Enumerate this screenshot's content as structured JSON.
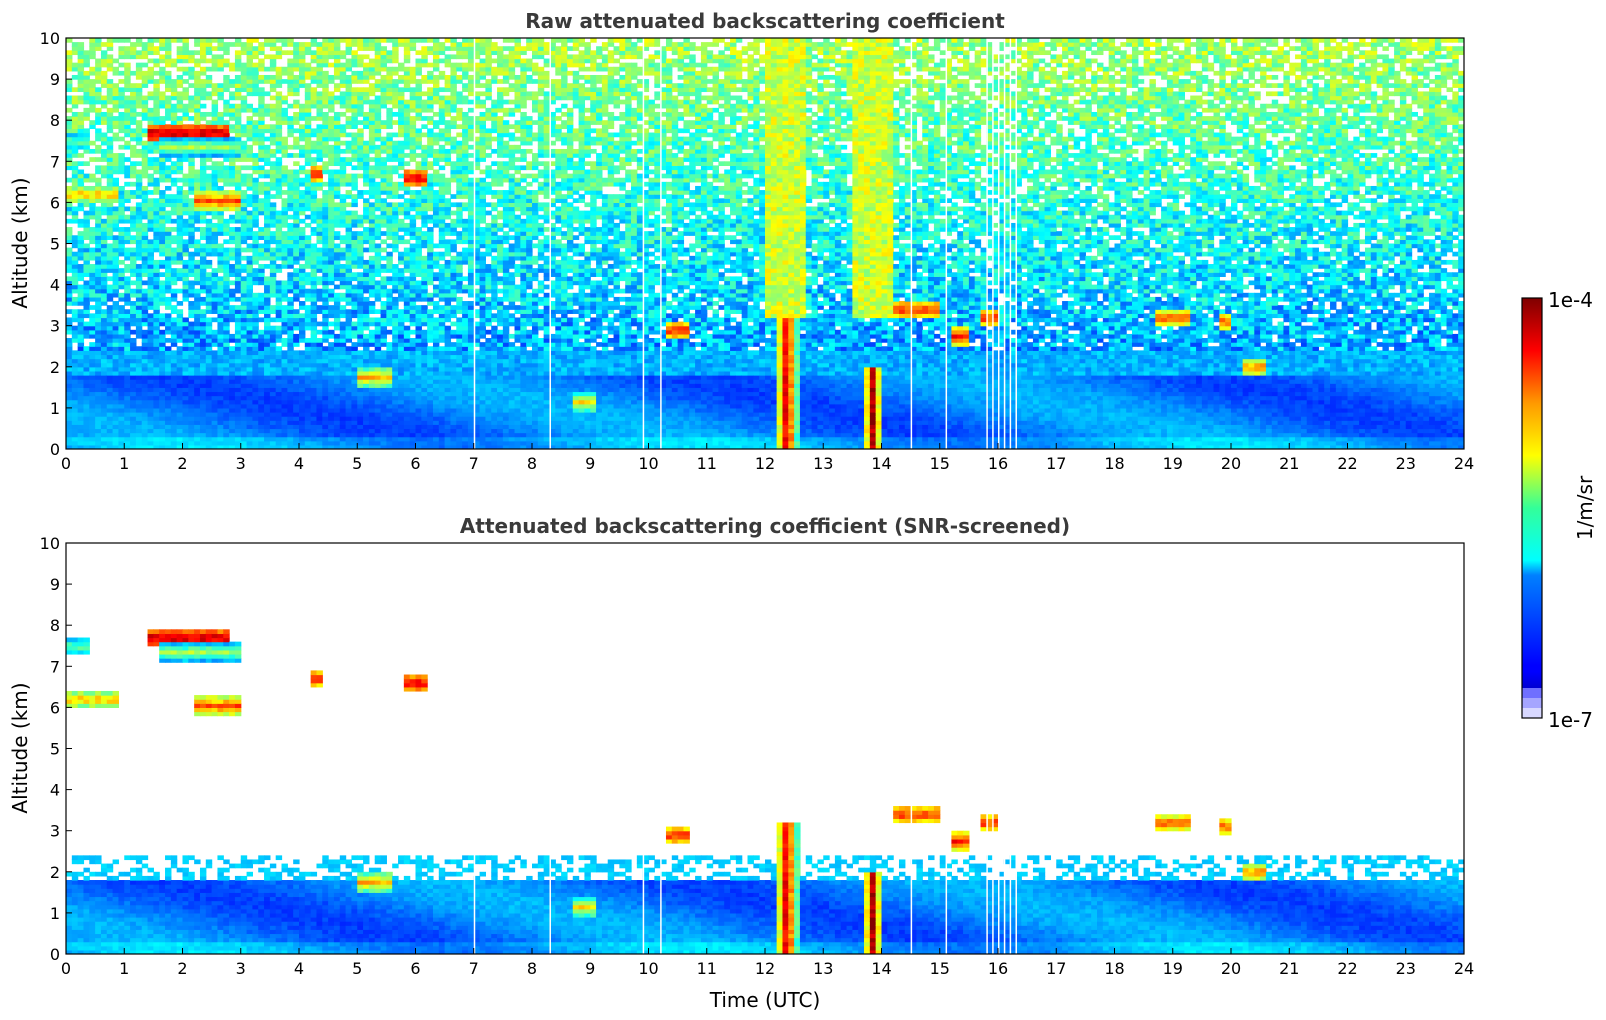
{
  "chart_data": [
    {
      "type": "heatmap",
      "title": "Raw attenuated backscattering coefficient",
      "xlabel": "",
      "ylabel": "Altitude (km)",
      "xlim": [
        0,
        24
      ],
      "ylim": [
        0,
        10
      ],
      "xticks": [
        "0",
        "1",
        "2",
        "3",
        "4",
        "5",
        "6",
        "7",
        "8",
        "9",
        "10",
        "11",
        "12",
        "13",
        "14",
        "15",
        "16",
        "17",
        "18",
        "19",
        "20",
        "21",
        "22",
        "23",
        "24"
      ],
      "yticks": [
        "0",
        "1",
        "2",
        "3",
        "4",
        "5",
        "6",
        "7",
        "8",
        "9",
        "10"
      ],
      "grid": false,
      "screened": false,
      "features": [
        {
          "kind": "boundary_layer",
          "x": [
            0,
            24
          ],
          "top_km": 1.8,
          "intensity": 0.2
        },
        {
          "kind": "cloud_layer",
          "x": [
            1.4,
            2.8
          ],
          "y": 7.7,
          "intensity": 0.95
        },
        {
          "kind": "cloud_layer",
          "x": [
            1.6,
            3.0
          ],
          "y": 7.35,
          "intensity": 0.55
        },
        {
          "kind": "cloud_layer",
          "x": [
            0.0,
            0.9
          ],
          "y": 6.2,
          "intensity": 0.7
        },
        {
          "kind": "cloud_layer",
          "x": [
            0.0,
            0.4
          ],
          "y": 7.5,
          "intensity": 0.5
        },
        {
          "kind": "cloud_layer",
          "x": [
            2.2,
            3.0
          ],
          "y": 6.05,
          "intensity": 0.8
        },
        {
          "kind": "cloud_layer",
          "x": [
            4.2,
            4.4
          ],
          "y": 6.7,
          "intensity": 0.85
        },
        {
          "kind": "cloud_layer",
          "x": [
            5.8,
            6.2
          ],
          "y": 6.6,
          "intensity": 0.9
        },
        {
          "kind": "cloud_layer",
          "x": [
            10.3,
            10.7
          ],
          "y": 2.9,
          "intensity": 0.85
        },
        {
          "kind": "cloud_layer",
          "x": [
            14.2,
            15.0
          ],
          "y": 3.4,
          "intensity": 0.85
        },
        {
          "kind": "cloud_layer",
          "x": [
            15.2,
            15.5
          ],
          "y": 2.75,
          "intensity": 0.85
        },
        {
          "kind": "cloud_layer",
          "x": [
            15.7,
            16.0
          ],
          "y": 3.2,
          "intensity": 0.85
        },
        {
          "kind": "cloud_layer",
          "x": [
            18.7,
            19.3
          ],
          "y": 3.2,
          "intensity": 0.8
        },
        {
          "kind": "cloud_layer",
          "x": [
            19.8,
            20.0
          ],
          "y": 3.1,
          "intensity": 0.8
        },
        {
          "kind": "cloud_layer",
          "x": [
            20.2,
            20.6
          ],
          "y": 2.0,
          "intensity": 0.75
        },
        {
          "kind": "cloud_layer",
          "x": [
            5.0,
            5.6
          ],
          "y": 1.75,
          "intensity": 0.7
        },
        {
          "kind": "cloud_layer",
          "x": [
            8.7,
            9.1
          ],
          "y": 1.15,
          "intensity": 0.65
        },
        {
          "kind": "precip_column",
          "x": [
            12.2,
            12.55
          ],
          "top_km": 3.2,
          "intensity": 0.9
        },
        {
          "kind": "precip_column",
          "x": [
            13.7,
            14.0
          ],
          "top_km": 2.0,
          "intensity": 0.9
        }
      ],
      "gaps_x": [
        7.0,
        8.3,
        9.9,
        10.2,
        14.5,
        15.1,
        15.8,
        15.9,
        16.0,
        16.1,
        16.2,
        16.3
      ]
    },
    {
      "type": "heatmap",
      "title": "Attenuated backscattering coefficient (SNR-screened)",
      "xlabel": "Time (UTC)",
      "ylabel": "Altitude (km)",
      "xlim": [
        0,
        24
      ],
      "ylim": [
        0,
        10
      ],
      "xticks": [
        "0",
        "1",
        "2",
        "3",
        "4",
        "5",
        "6",
        "7",
        "8",
        "9",
        "10",
        "11",
        "12",
        "13",
        "14",
        "15",
        "16",
        "17",
        "18",
        "19",
        "20",
        "21",
        "22",
        "23",
        "24"
      ],
      "yticks": [
        "0",
        "1",
        "2",
        "3",
        "4",
        "5",
        "6",
        "7",
        "8",
        "9",
        "10"
      ],
      "grid": false,
      "screened": true
    }
  ],
  "colorbar": {
    "label": "1/m/sr",
    "max_label": "1e-4",
    "min_label": "1e-7",
    "colormap": "jet"
  }
}
